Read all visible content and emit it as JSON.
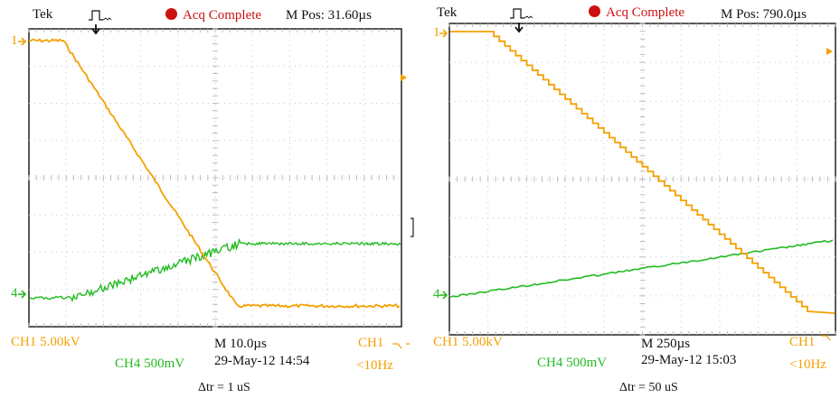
{
  "colors": {
    "ch1": "#f5a000",
    "ch4": "#22bb22",
    "grid": "#cfcfcf",
    "frame": "#222222",
    "status": "#cc1111"
  },
  "left": {
    "brand": "Tek",
    "status": "Acq Complete",
    "mpos": "M Pos: 31.60µs",
    "ch1_marker": "1",
    "ch4_marker": "4",
    "ch1_scale": "CH1  5.00kV",
    "ch4_scale": "CH4  500mV",
    "timebase": "M 10.0µs",
    "datetime": "29-May-12 14:54",
    "trig_src": "CH1",
    "trig_rate": "<10Hz",
    "caption": "Δtr = 1 uS"
  },
  "right": {
    "brand": "Tek",
    "status": "Acq Complete",
    "mpos": "M Pos: 790.0µs",
    "ch1_marker": "1",
    "ch4_marker": "4",
    "ch1_scale": "CH1  5.00kV",
    "ch4_scale": "CH4  500mV",
    "timebase": "M 250µs",
    "datetime": "29-May-12 15:03",
    "trig_src": "CH1",
    "trig_rate": "<10Hz",
    "caption": "Δtr = 50 uS"
  }
}
